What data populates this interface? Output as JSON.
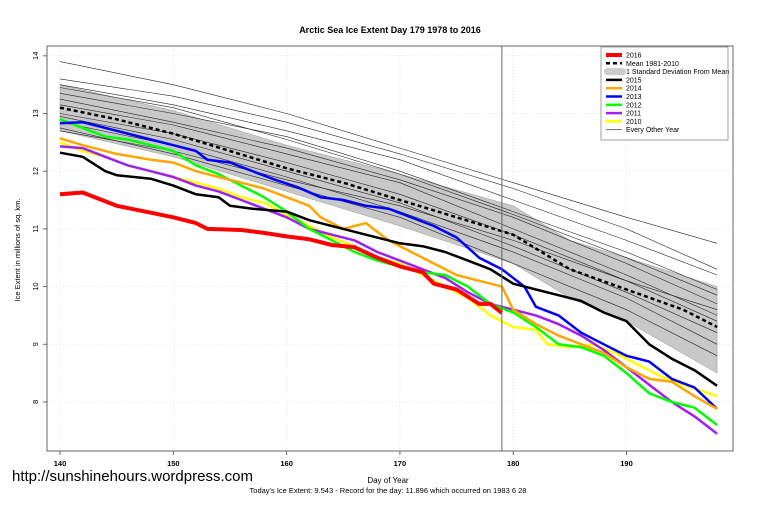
{
  "chart_data": {
    "type": "line",
    "title": "Arctic Sea Ice Extent Day 179 1978 to 2016",
    "xlabel": "Day of Year",
    "ylabel": "Ice Extent in millions of sq. km.",
    "subtitle": "Today's Ice Extent: 9.543  - Record for the day: 11.896 which occurred on 1983 6 28",
    "xlim": [
      138.85,
      199.4
    ],
    "ylim": [
      7.15,
      14.17
    ],
    "xticks": [
      140,
      150,
      160,
      170,
      180,
      190
    ],
    "yticks": [
      8,
      9,
      10,
      11,
      12,
      13,
      14
    ],
    "grid": true,
    "legend_position": "top-right",
    "vline_day": 179,
    "legend": [
      "2016",
      "Mean 1981-2010",
      "1 Standard Deviation From Mean",
      "2015",
      "2014",
      "2013",
      "2012",
      "2011",
      "2010",
      "Every Other Year"
    ],
    "std_band": {
      "x": [
        140,
        150,
        160,
        170,
        180,
        185,
        190,
        198
      ],
      "lower": [
        12.7,
        12.25,
        11.65,
        11.05,
        10.4,
        9.8,
        9.4,
        8.5
      ],
      "upper": [
        13.5,
        13.05,
        12.45,
        11.95,
        11.4,
        10.8,
        10.5,
        10.0
      ]
    },
    "mean": {
      "name": "Mean 1981-2010",
      "x": [
        140,
        145,
        150,
        155,
        160,
        165,
        170,
        175,
        180,
        185,
        190,
        195,
        198
      ],
      "y": [
        13.1,
        12.9,
        12.65,
        12.35,
        12.05,
        11.8,
        11.5,
        11.2,
        10.9,
        10.3,
        9.95,
        9.6,
        9.3
      ]
    },
    "series": [
      {
        "name": "2016",
        "color": "#ff0000",
        "x": [
          140,
          142,
          145,
          148,
          150,
          152,
          153,
          156,
          158,
          160,
          162,
          164,
          166,
          168,
          170,
          172,
          173,
          175,
          177,
          178,
          179
        ],
        "y": [
          11.6,
          11.63,
          11.4,
          11.28,
          11.2,
          11.1,
          11.0,
          10.98,
          10.93,
          10.87,
          10.82,
          10.72,
          10.68,
          10.5,
          10.35,
          10.25,
          10.05,
          9.95,
          9.7,
          9.7,
          9.543
        ]
      },
      {
        "name": "2015",
        "color": "#000000",
        "x": [
          140,
          142,
          144,
          145,
          148,
          150,
          152,
          154,
          155,
          157,
          160,
          162,
          165,
          167,
          170,
          172,
          174,
          176,
          178,
          180,
          182,
          184,
          186,
          188,
          190,
          192,
          194,
          196,
          198
        ],
        "y": [
          12.32,
          12.25,
          12.0,
          11.93,
          11.87,
          11.75,
          11.6,
          11.55,
          11.4,
          11.35,
          11.3,
          11.15,
          11.0,
          10.9,
          10.75,
          10.7,
          10.6,
          10.45,
          10.3,
          10.05,
          9.95,
          9.85,
          9.75,
          9.55,
          9.4,
          9.0,
          8.75,
          8.55,
          8.28
        ]
      },
      {
        "name": "2014",
        "color": "#ffa500",
        "x": [
          140,
          142,
          145,
          148,
          150,
          152,
          154,
          156,
          158,
          160,
          162,
          163,
          165,
          167,
          169,
          171,
          173,
          175,
          177,
          179,
          180,
          182,
          184,
          186,
          188,
          190,
          192,
          194,
          196,
          198
        ],
        "y": [
          12.57,
          12.45,
          12.3,
          12.2,
          12.15,
          12.0,
          11.9,
          11.8,
          11.7,
          11.55,
          11.4,
          11.2,
          11.0,
          11.1,
          10.8,
          10.6,
          10.4,
          10.2,
          10.1,
          10.0,
          9.6,
          9.35,
          9.15,
          9.0,
          8.85,
          8.6,
          8.4,
          8.35,
          8.1,
          7.88
        ]
      },
      {
        "name": "2013",
        "color": "#0000ff",
        "x": [
          140,
          142,
          145,
          148,
          150,
          152,
          153,
          155,
          157,
          159,
          161,
          163,
          165,
          167,
          169,
          171,
          173,
          175,
          177,
          179,
          181,
          182,
          184,
          186,
          188,
          190,
          192,
          194,
          196,
          198
        ],
        "y": [
          12.83,
          12.85,
          12.7,
          12.55,
          12.45,
          12.35,
          12.2,
          12.15,
          12.0,
          11.85,
          11.72,
          11.55,
          11.5,
          11.4,
          11.35,
          11.2,
          11.05,
          10.85,
          10.5,
          10.3,
          10.0,
          9.65,
          9.5,
          9.2,
          9.0,
          8.8,
          8.7,
          8.4,
          8.25,
          7.88
        ]
      },
      {
        "name": "2012",
        "color": "#00ff00",
        "x": [
          140,
          142,
          144,
          146,
          148,
          150,
          152,
          154,
          156,
          158,
          160,
          162,
          164,
          166,
          168,
          170,
          172,
          174,
          176,
          178,
          180,
          182,
          184,
          186,
          188,
          190,
          192,
          194,
          196,
          198
        ],
        "y": [
          12.9,
          12.75,
          12.6,
          12.55,
          12.45,
          12.35,
          12.1,
          11.95,
          11.75,
          11.55,
          11.3,
          11.0,
          10.8,
          10.6,
          10.45,
          10.35,
          10.25,
          10.2,
          10.0,
          9.7,
          9.55,
          9.3,
          9.0,
          8.95,
          8.8,
          8.5,
          8.15,
          8.0,
          7.9,
          7.6
        ]
      },
      {
        "name": "2011",
        "color": "#a020f0",
        "x": [
          140,
          142,
          144,
          146,
          148,
          150,
          152,
          154,
          156,
          158,
          160,
          162,
          164,
          166,
          168,
          170,
          172,
          174,
          176,
          178,
          180,
          182,
          184,
          186,
          188,
          190,
          192,
          194,
          196,
          198
        ],
        "y": [
          12.43,
          12.4,
          12.25,
          12.1,
          12.0,
          11.9,
          11.75,
          11.65,
          11.5,
          11.35,
          11.2,
          11.0,
          10.9,
          10.8,
          10.6,
          10.45,
          10.3,
          10.15,
          9.9,
          9.7,
          9.6,
          9.5,
          9.35,
          9.15,
          8.9,
          8.6,
          8.3,
          8.0,
          7.75,
          7.45
        ]
      },
      {
        "name": "2010",
        "color": "#ffff00",
        "x": [
          140,
          142,
          144,
          146,
          148,
          150,
          152,
          154,
          156,
          158,
          160,
          162,
          164,
          166,
          168,
          170,
          172,
          174,
          176,
          178,
          180,
          182,
          183,
          185,
          187,
          189,
          191,
          193,
          195,
          198
        ],
        "y": [
          12.5,
          12.35,
          12.25,
          12.1,
          12.0,
          11.9,
          11.8,
          11.7,
          11.55,
          11.45,
          11.25,
          11.05,
          10.85,
          10.7,
          10.5,
          10.4,
          10.2,
          10.0,
          9.8,
          9.5,
          9.3,
          9.25,
          9.0,
          8.95,
          9.0,
          8.85,
          8.65,
          8.45,
          8.3,
          8.1
        ]
      }
    ],
    "other_years": {
      "name": "Every Other Year",
      "x": [
        140,
        150,
        160,
        170,
        180,
        190,
        198
      ],
      "lines": [
        [
          13.9,
          13.5,
          13.0,
          12.4,
          11.8,
          11.2,
          10.75
        ],
        [
          13.6,
          13.3,
          12.85,
          12.3,
          11.7,
          11.0,
          10.3
        ],
        [
          13.5,
          13.15,
          12.7,
          12.2,
          11.5,
          10.8,
          10.2
        ],
        [
          13.35,
          13.0,
          12.6,
          12.0,
          11.3,
          10.6,
          9.95
        ],
        [
          13.25,
          12.85,
          12.4,
          11.85,
          11.2,
          10.4,
          9.7
        ],
        [
          13.15,
          12.8,
          12.3,
          11.8,
          11.0,
          10.2,
          9.5
        ],
        [
          13.0,
          12.65,
          12.15,
          11.6,
          10.9,
          10.1,
          9.4
        ],
        [
          12.95,
          12.55,
          12.0,
          11.45,
          10.7,
          9.9,
          9.2
        ],
        [
          12.85,
          12.45,
          11.9,
          11.3,
          10.6,
          9.8,
          9.0
        ],
        [
          12.75,
          12.3,
          11.75,
          11.2,
          10.4,
          9.6,
          8.8
        ],
        [
          12.7,
          12.35,
          11.85,
          11.4,
          10.8,
          10.1,
          9.6
        ],
        [
          13.45,
          13.1,
          12.55,
          11.95,
          11.25,
          10.5,
          9.85
        ]
      ]
    }
  },
  "footer": {
    "url": "http://sunshinehours.wordpress.com"
  }
}
